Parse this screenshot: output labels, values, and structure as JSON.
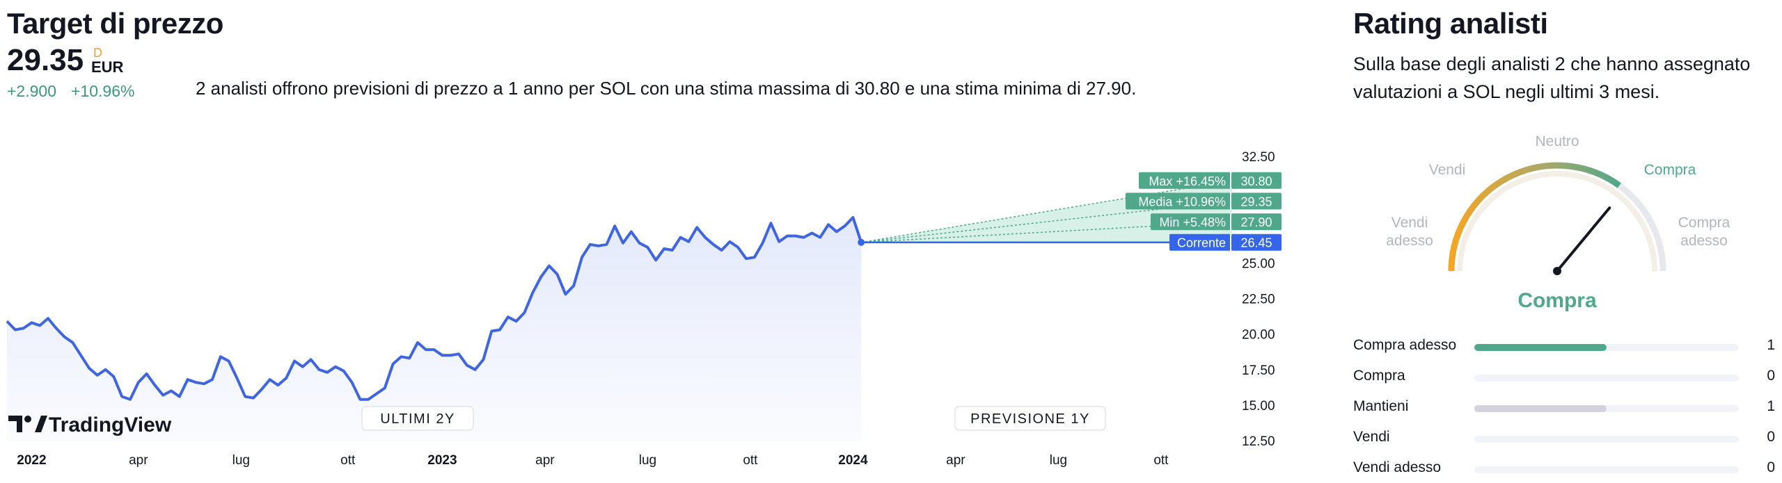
{
  "target": {
    "title": "Target di prezzo",
    "price": "29.35",
    "price_flag": "D",
    "currency": "EUR",
    "change_abs": "+2.900",
    "change_pct": "+10.96%",
    "description": "2 analisti offrono previsioni di prezzo a 1 anno per SOL con una stima massima di 30.80 e una stima minima di 27.90."
  },
  "colors": {
    "line": "#3f66e0",
    "area": "#e3e9fb",
    "forecast": "#4fa88a",
    "forecast_fill": "#d7f1e8",
    "current": "#3565e8",
    "grid_text": "#131722",
    "buy": "#4fa88a",
    "hold": "#d1d4dc"
  },
  "chart_data": {
    "type": "line",
    "yticks": [
      32.5,
      25.0,
      22.5,
      20.0,
      17.5,
      15.0,
      12.5
    ],
    "xticks": [
      {
        "label": "2022",
        "bold": true,
        "t": 0.06
      },
      {
        "label": "apr",
        "bold": false,
        "t": 0.32
      },
      {
        "label": "lug",
        "bold": false,
        "t": 0.57
      },
      {
        "label": "ott",
        "bold": false,
        "t": 0.83
      },
      {
        "label": "2023",
        "bold": true,
        "t": 1.06
      },
      {
        "label": "apr",
        "bold": false,
        "t": 1.31
      },
      {
        "label": "lug",
        "bold": false,
        "t": 1.56
      },
      {
        "label": "ott",
        "bold": false,
        "t": 1.81
      },
      {
        "label": "2024",
        "bold": true,
        "t": 2.06
      },
      {
        "label": "apr",
        "bold": false,
        "t": 2.31
      },
      {
        "label": "lug",
        "bold": false,
        "t": 2.56
      },
      {
        "label": "ott",
        "bold": false,
        "t": 2.81
      }
    ],
    "ylim": [
      12.5,
      33.5
    ],
    "series": [
      {
        "x": [
          0,
          0.02,
          0.04,
          0.06,
          0.08,
          0.1,
          0.12,
          0.14,
          0.16,
          0.18,
          0.2,
          0.22,
          0.24,
          0.26,
          0.28,
          0.3,
          0.32,
          0.34,
          0.36,
          0.38,
          0.4,
          0.42,
          0.44,
          0.46,
          0.48,
          0.5,
          0.52,
          0.54,
          0.56,
          0.58,
          0.6,
          0.62,
          0.64,
          0.66,
          0.68,
          0.7,
          0.72,
          0.74,
          0.76,
          0.78,
          0.8,
          0.82,
          0.84,
          0.86,
          0.88,
          0.9,
          0.92,
          0.94,
          0.96,
          0.98,
          1,
          1.02,
          1.04,
          1.06,
          1.08,
          1.1,
          1.12,
          1.14,
          1.16,
          1.18,
          1.2,
          1.22,
          1.24,
          1.26,
          1.28,
          1.3,
          1.32,
          1.34,
          1.36,
          1.38,
          1.4,
          1.42,
          1.44,
          1.46,
          1.48,
          1.5,
          1.52,
          1.54,
          1.56,
          1.58,
          1.6,
          1.62,
          1.64,
          1.66,
          1.68,
          1.7,
          1.72,
          1.74,
          1.76,
          1.78,
          1.8,
          1.82,
          1.84,
          1.86,
          1.88,
          1.9,
          1.92,
          1.94,
          1.96,
          1.98
        ],
        "values": [
          20.9,
          20.3,
          20.4,
          20.8,
          20.6,
          21.1,
          20.4,
          19.8,
          19.4,
          18.5,
          17.6,
          17.1,
          17.5,
          17.0,
          15.6,
          15.4,
          16.6,
          17.2,
          16.4,
          15.7,
          16.0,
          15.6,
          16.8,
          16.6,
          16.5,
          16.8,
          18.4,
          18.1,
          16.9,
          15.6,
          15.5,
          16.1,
          16.8,
          16.4,
          16.9,
          18.1,
          17.7,
          18.2,
          17.5,
          17.3,
          17.7,
          17.4,
          16.6,
          15.4,
          15.4,
          15.8,
          16.2,
          17.9,
          18.4,
          18.3,
          19.4,
          18.9,
          18.9,
          18.5,
          18.5,
          18.6,
          17.8,
          17.5,
          18.2,
          20.2,
          20.3,
          21.2,
          20.9,
          21.5,
          22.9,
          24.0,
          24.8,
          24.2,
          22.8,
          23.4,
          25.4,
          26.3,
          26.2,
          26.3,
          27.6,
          26.4,
          27.2,
          26.4,
          26.1,
          25.2,
          26.0,
          25.9,
          26.8,
          26.5,
          27.5,
          26.8,
          26.3,
          25.9,
          26.5,
          26.1,
          25.3,
          25.4,
          26.4,
          27.8,
          26.5,
          26.9,
          26.9,
          26.8,
          27.1,
          26.8
        ],
        "last_points": [
          [
            2.0,
            27.7
          ],
          [
            2.02,
            27.2
          ],
          [
            2.04,
            27.6
          ],
          [
            2.06,
            28.2
          ],
          [
            2.08,
            26.45
          ]
        ]
      }
    ],
    "forecast": {
      "current": {
        "label": "Corrente",
        "value": "26.45",
        "num": 26.45
      },
      "max": {
        "label": "Max +16.45%",
        "value": "30.80",
        "num": 30.8
      },
      "average": {
        "label": "Media +10.96%",
        "value": "29.35",
        "num": 29.35
      },
      "min": {
        "label": "Min +5.48%",
        "value": "27.90",
        "num": 27.9
      }
    },
    "section_labels": {
      "past": "ULTIMI 2Y",
      "future": "PREVISIONE 1Y"
    },
    "logo": "TradingView"
  },
  "rating": {
    "title": "Rating analisti",
    "description": "Sulla base degli analisti 2 che hanno assegnato valutazioni a SOL negli ultimi 3 mesi.",
    "gauge_labels": {
      "strong_sell": [
        "Vendi",
        "adesso"
      ],
      "sell": "Vendi",
      "neutral": "Neutro",
      "buy": "Compra",
      "strong_buy": [
        "Compra",
        "adesso"
      ]
    },
    "result": "Compra",
    "needle_value": 0.72,
    "breakdown": [
      {
        "label": "Compra adesso",
        "count": "1",
        "fraction": 0.5,
        "color": "#4fa88a"
      },
      {
        "label": "Compra",
        "count": "0",
        "fraction": 0,
        "color": "#4fa88a"
      },
      {
        "label": "Mantieni",
        "count": "1",
        "fraction": 0.5,
        "color": "#d1d4dc"
      },
      {
        "label": "Vendi",
        "count": "0",
        "fraction": 0,
        "color": "#4fa88a"
      },
      {
        "label": "Vendi adesso",
        "count": "0",
        "fraction": 0,
        "color": "#4fa88a"
      }
    ]
  }
}
